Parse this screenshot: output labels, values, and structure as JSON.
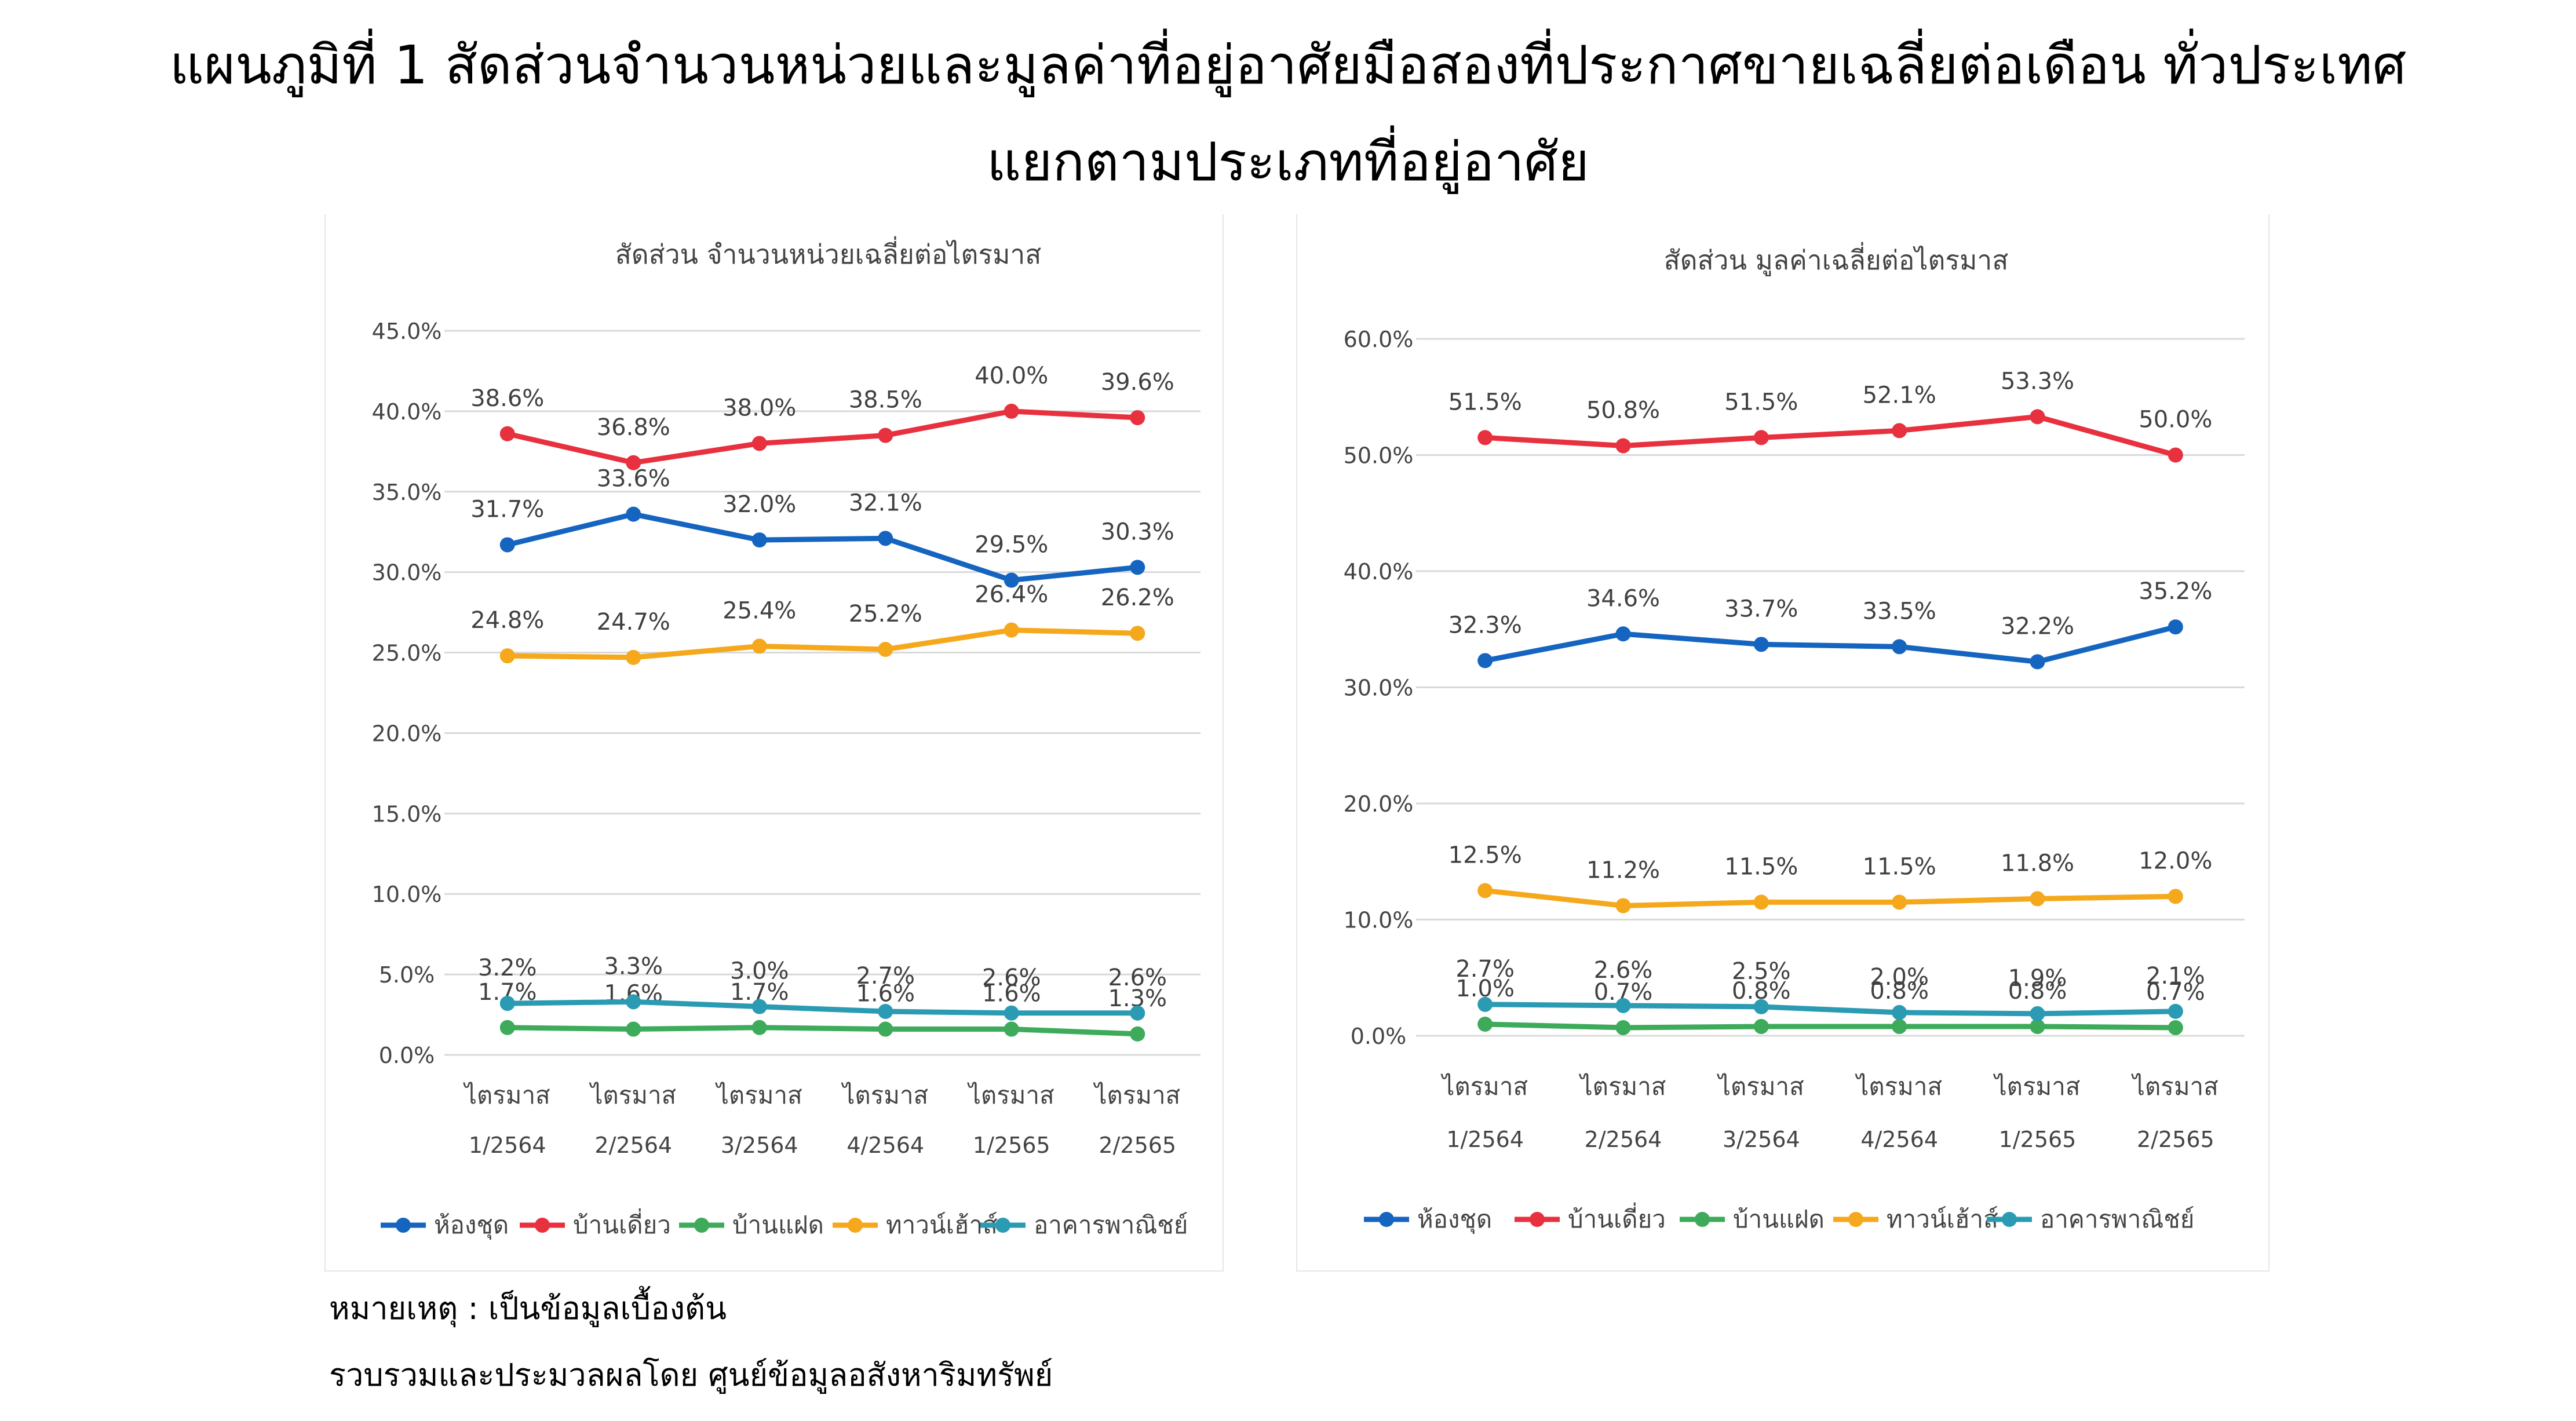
{
  "title": {
    "line1": "แผนภูมิที่ 1 สัดส่วนจำนวนหน่วยและมูลค่าที่อยู่อาศัยมือสองที่ประกาศขายเฉลี่ยต่อเดือน ทั่วประเทศ",
    "line2": "แยกตามประเภทที่อยู่อาศัย"
  },
  "footnote": {
    "note": "หมายเหตุ : เป็นข้อมูลเบื้องต้น",
    "source": "รวบรวมและประมวลผลโดย ศูนย์ข้อมูลอสังหาริมทรัพย์"
  },
  "chart_data": [
    {
      "type": "line",
      "title": "สัดส่วน จำนวนหน่วยเฉลี่ยต่อไตรมาส",
      "categories": [
        [
          "ไตรมาส",
          "1/2564"
        ],
        [
          "ไตรมาส",
          "2/2564"
        ],
        [
          "ไตรมาส",
          "3/2564"
        ],
        [
          "ไตรมาส",
          "4/2564"
        ],
        [
          "ไตรมาส",
          "1/2565"
        ],
        [
          "ไตรมาส",
          "2/2565"
        ]
      ],
      "ylim": [
        0,
        45
      ],
      "yticks": [
        "0.0%",
        "5.0%",
        "10.0%",
        "15.0%",
        "20.0%",
        "25.0%",
        "30.0%",
        "35.0%",
        "40.0%",
        "45.0%"
      ],
      "grid": true,
      "legend": "bottom",
      "series": [
        {
          "name": "ห้องชุด",
          "color": "#1565C0",
          "values": [
            31.7,
            33.6,
            32.0,
            32.1,
            29.5,
            30.3
          ],
          "labels": [
            "31.7%",
            "33.6%",
            "32.0%",
            "32.1%",
            "29.5%",
            "30.3%"
          ]
        },
        {
          "name": "บ้านเดี่ยว",
          "color": "#E8313F",
          "values": [
            38.6,
            36.8,
            38.0,
            38.5,
            40.0,
            39.6
          ],
          "labels": [
            "38.6%",
            "36.8%",
            "38.0%",
            "38.5%",
            "40.0%",
            "39.6%"
          ]
        },
        {
          "name": "บ้านแฝด",
          "color": "#3EAB5B",
          "values": [
            1.7,
            1.6,
            1.7,
            1.6,
            1.6,
            1.3
          ],
          "labels": [
            "1.7%",
            "1.6%",
            "1.7%",
            "1.6%",
            "1.6%",
            "1.3%"
          ]
        },
        {
          "name": "ทาวน์เฮ้าส์",
          "color": "#F5A81C",
          "values": [
            24.8,
            24.7,
            25.4,
            25.2,
            26.4,
            26.2
          ],
          "labels": [
            "24.8%",
            "24.7%",
            "25.4%",
            "25.2%",
            "26.4%",
            "26.2%"
          ]
        },
        {
          "name": "อาคารพาณิชย์",
          "color": "#2B9BB3",
          "values": [
            3.2,
            3.3,
            3.0,
            2.7,
            2.6,
            2.6
          ],
          "labels": [
            "3.2%",
            "3.3%",
            "3.0%",
            "2.7%",
            "2.6%",
            "2.6%"
          ]
        }
      ]
    },
    {
      "type": "line",
      "title": "สัดส่วน มูลค่าเฉลี่ยต่อไตรมาส",
      "categories": [
        [
          "ไตรมาส",
          "1/2564"
        ],
        [
          "ไตรมาส",
          "2/2564"
        ],
        [
          "ไตรมาส",
          "3/2564"
        ],
        [
          "ไตรมาส",
          "4/2564"
        ],
        [
          "ไตรมาส",
          "1/2565"
        ],
        [
          "ไตรมาส",
          "2/2565"
        ]
      ],
      "ylim": [
        0,
        60
      ],
      "yticks": [
        "0.0%",
        "10.0%",
        "20.0%",
        "30.0%",
        "40.0%",
        "50.0%",
        "60.0%"
      ],
      "grid": true,
      "legend": "bottom",
      "series": [
        {
          "name": "ห้องชุด",
          "color": "#1565C0",
          "values": [
            32.3,
            34.6,
            33.7,
            33.5,
            32.2,
            35.2
          ],
          "labels": [
            "32.3%",
            "34.6%",
            "33.7%",
            "33.5%",
            "32.2%",
            "35.2%"
          ]
        },
        {
          "name": "บ้านเดี่ยว",
          "color": "#E8313F",
          "values": [
            51.5,
            50.8,
            51.5,
            52.1,
            53.3,
            50.0
          ],
          "labels": [
            "51.5%",
            "50.8%",
            "51.5%",
            "52.1%",
            "53.3%",
            "50.0%"
          ]
        },
        {
          "name": "บ้านแฝด",
          "color": "#3EAB5B",
          "values": [
            1.0,
            0.7,
            0.8,
            0.8,
            0.8,
            0.7
          ],
          "labels": [
            "1.0%",
            "0.7%",
            "0.8%",
            "0.8%",
            "0.8%",
            "0.7%"
          ]
        },
        {
          "name": "ทาวน์เฮ้าส์",
          "color": "#F5A81C",
          "values": [
            12.5,
            11.2,
            11.5,
            11.5,
            11.8,
            12.0
          ],
          "labels": [
            "12.5%",
            "11.2%",
            "11.5%",
            "11.5%",
            "11.8%",
            "12.0%"
          ]
        },
        {
          "name": "อาคารพาณิชย์",
          "color": "#2B9BB3",
          "values": [
            2.7,
            2.6,
            2.5,
            2.0,
            1.9,
            2.1
          ],
          "labels": [
            "2.7%",
            "2.6%",
            "2.5%",
            "2.0%",
            "1.9%",
            "2.1%"
          ]
        }
      ]
    }
  ]
}
